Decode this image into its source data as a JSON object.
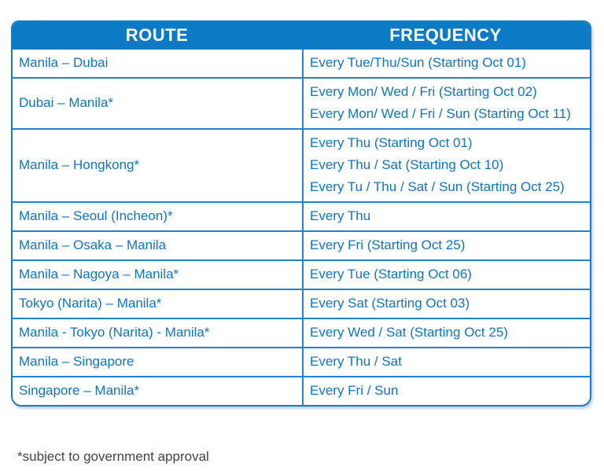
{
  "table": {
    "headers": [
      {
        "label": "ROUTE"
      },
      {
        "label": "FREQUENCY"
      }
    ],
    "rows": [
      {
        "route": "Manila – Dubai",
        "frequency": [
          "Every Tue/Thu/Sun (Starting Oct 01)"
        ]
      },
      {
        "route": "Dubai – Manila*",
        "frequency": [
          "Every Mon/ Wed / Fri (Starting Oct 02)",
          "Every Mon/ Wed / Fri / Sun (Starting Oct 11)"
        ]
      },
      {
        "route": "Manila – Hongkong*",
        "frequency": [
          "Every Thu (Starting Oct 01)",
          "Every Thu / Sat (Starting Oct 10)",
          "Every Tu / Thu / Sat / Sun (Starting Oct 25)"
        ]
      },
      {
        "route": "Manila – Seoul (Incheon)*",
        "frequency": [
          "Every Thu"
        ]
      },
      {
        "route": "Manila – Osaka – Manila",
        "frequency": [
          "Every Fri (Starting Oct 25)"
        ]
      },
      {
        "route": "Manila – Nagoya – Manila*",
        "frequency": [
          "Every Tue (Starting Oct 06)"
        ]
      },
      {
        "route": "Tokyo (Narita) – Manila*",
        "frequency": [
          "Every Sat (Starting Oct 03)"
        ]
      },
      {
        "route": "Manila - Tokyo (Narita) - Manila*",
        "frequency": [
          "Every Wed / Sat (Starting Oct 25)"
        ]
      },
      {
        "route": "Manila – Singapore",
        "frequency": [
          "Every Thu / Sat"
        ]
      },
      {
        "route": "Singapore – Manila*",
        "frequency": [
          "Every Fri / Sun"
        ]
      }
    ]
  },
  "footnote": "*subject to government approval",
  "colors": {
    "header_bg": "#0d7ac6",
    "header_text": "#ffffff",
    "cell_text": "#0d74c9",
    "grid_line": "#2581cb",
    "outer_border": "#1b79c6",
    "footnote_text": "#3d4349"
  }
}
